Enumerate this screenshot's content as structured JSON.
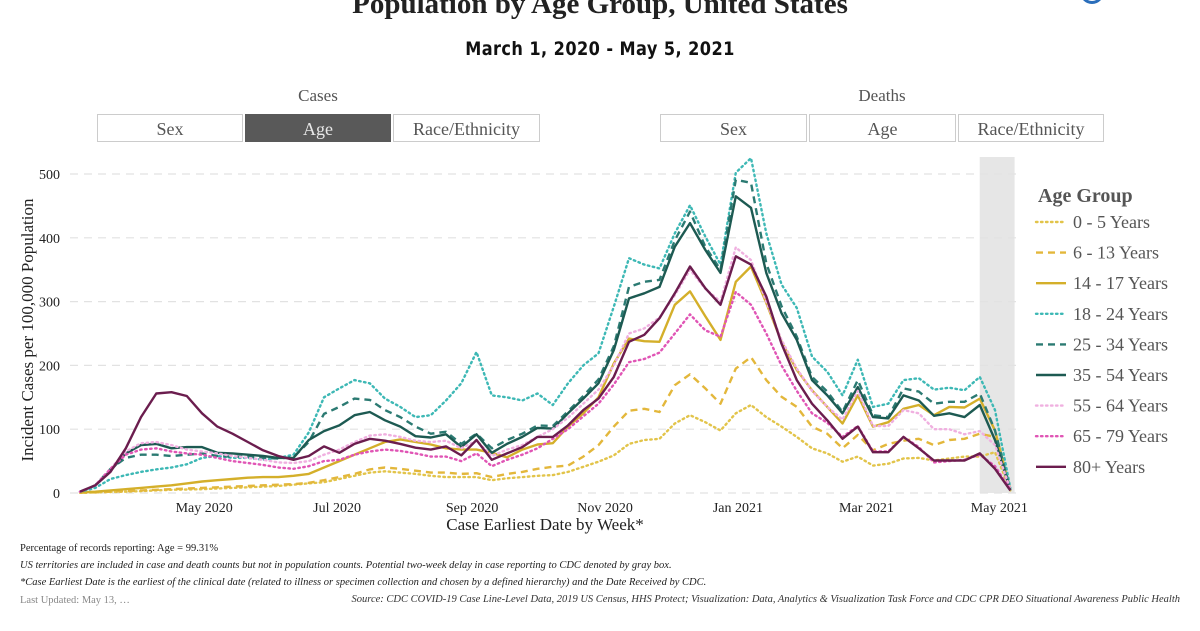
{
  "header": {
    "title": "Population by Age Group, United States",
    "subtitle": "March 1, 2020 - May 5, 2021"
  },
  "toggles": {
    "cases": {
      "label": "Cases",
      "buttons": [
        "Sex",
        "Age",
        "Race/Ethnicity"
      ],
      "active": "Age"
    },
    "deaths": {
      "label": "Deaths",
      "buttons": [
        "Sex",
        "Age",
        "Race/Ethnicity"
      ]
    }
  },
  "footer": {
    "pct": "Percentage of records reporting: Age = 99.31%",
    "note1": "US territories are included in case and death counts but not in population counts. Potential two-week delay in case reporting to CDC denoted by gray box.",
    "note2": "*Case Earliest Date is the earliest of the clinical date (related to illness or specimen collection and chosen by a defined hierarchy) and the Date Received by CDC.",
    "updated": "Last Updated: May 13, …",
    "source": "Source: CDC COVID-19 Case Line-Level Data, 2019 US Census, HHS Protect; Visualization: Data, Analytics & Visualization Task Force and CDC CPR DEO Situational Awareness Public Health"
  },
  "chart_data": {
    "type": "line",
    "xlabel": "Case Earliest Date by Week*",
    "ylabel": "Incident Cases per 100,000 Population",
    "ylim": [
      0,
      500
    ],
    "yticks": [
      0,
      100,
      200,
      300,
      400,
      500
    ],
    "xticks": [
      {
        "date": "2020-05-01",
        "label": "May 2020"
      },
      {
        "date": "2020-07-01",
        "label": "Jul 2020"
      },
      {
        "date": "2020-09-01",
        "label": "Sep 2020"
      },
      {
        "date": "2020-11-01",
        "label": "Nov 2020"
      },
      {
        "date": "2021-01-01",
        "label": "Jan 2021"
      },
      {
        "date": "2021-03-01",
        "label": "Mar 2021"
      },
      {
        "date": "2021-05-01",
        "label": "May 2021"
      }
    ],
    "x_start": "2020-03-05",
    "x_interval_days": 7,
    "shaded_region": {
      "from": "2021-04-22",
      "to": "2021-05-08",
      "color": "#e6e6e6",
      "meaning": "Potential two-week reporting delay"
    },
    "grid": "horizontal dashed",
    "legend": {
      "title": "Age Group",
      "placement": "right"
    },
    "series": [
      {
        "name": "0 - 5 Years",
        "color": "#e2c44a",
        "dash": "dotted",
        "values": [
          0.3,
          1,
          1.5,
          2,
          3,
          4,
          5,
          5.5,
          6,
          7,
          8,
          9,
          10,
          11,
          13,
          15,
          17,
          22,
          27,
          32,
          34,
          32,
          30,
          27,
          25,
          25,
          25,
          20,
          23,
          25,
          27,
          28,
          33,
          41,
          49,
          59,
          77,
          83,
          85,
          109,
          122,
          111,
          98,
          125,
          138,
          119,
          104,
          88,
          70,
          62,
          49,
          57,
          43,
          46,
          54,
          55,
          51,
          54,
          57,
          57,
          64,
          4
        ]
      },
      {
        "name": "6 - 13 Years",
        "color": "#e3b73b",
        "dash": "dashed",
        "values": [
          0.5,
          1,
          2,
          3,
          4,
          5,
          6,
          7,
          8,
          9,
          10,
          11,
          12,
          13,
          14,
          16,
          20,
          25,
          30,
          37,
          40,
          38,
          35,
          32,
          32,
          30,
          31,
          25,
          30,
          33,
          38,
          41,
          43,
          57,
          75,
          104,
          129,
          132,
          127,
          169,
          186,
          164,
          140,
          195,
          213,
          177,
          151,
          135,
          104,
          93,
          70,
          91,
          67,
          77,
          82,
          85,
          75,
          83,
          85,
          93,
          88,
          6
        ]
      },
      {
        "name": "14 - 17 Years",
        "color": "#d4af2a",
        "dash": "solid",
        "values": [
          1,
          2,
          4,
          6,
          8,
          10,
          12,
          15,
          18,
          20,
          22,
          24,
          25,
          25,
          27,
          30,
          40,
          50,
          60,
          70,
          80,
          84,
          80,
          76,
          70,
          68,
          68,
          63,
          56,
          68,
          76,
          78,
          104,
          125,
          150,
          203,
          242,
          238,
          237,
          295,
          316,
          277,
          240,
          331,
          355,
          298,
          237,
          193,
          161,
          135,
          109,
          153,
          104,
          111,
          132,
          138,
          122,
          135,
          134,
          148,
          98,
          6
        ]
      },
      {
        "name": "18 - 24 Years",
        "color": "#3db8b5",
        "dash": "dotted",
        "values": [
          2,
          8,
          22,
          28,
          33,
          37,
          40,
          45,
          55,
          58,
          55,
          55,
          52,
          55,
          60,
          95,
          150,
          164,
          177,
          172,
          148,
          135,
          119,
          122,
          145,
          172,
          221,
          153,
          150,
          145,
          156,
          138,
          172,
          200,
          219,
          292,
          368,
          358,
          352,
          407,
          451,
          402,
          358,
          502,
          525,
          407,
          327,
          290,
          214,
          190,
          153,
          209,
          135,
          140,
          177,
          180,
          162,
          165,
          161,
          182,
          130,
          8
        ]
      },
      {
        "name": "25 - 34 Years",
        "color": "#2b7a72",
        "dash": "dashed",
        "values": [
          2,
          12,
          38,
          55,
          60,
          60,
          58,
          60,
          62,
          58,
          57,
          57,
          55,
          54,
          56,
          80,
          124,
          135,
          148,
          146,
          130,
          119,
          104,
          93,
          96,
          77,
          93,
          70,
          83,
          93,
          106,
          105,
          128,
          152,
          178,
          230,
          323,
          331,
          334,
          396,
          441,
          386,
          350,
          491,
          486,
          360,
          293,
          245,
          182,
          159,
          127,
          177,
          122,
          119,
          164,
          159,
          140,
          143,
          143,
          156,
          98,
          4
        ]
      },
      {
        "name": "35 - 54 Years",
        "color": "#1d5a52",
        "dash": "solid",
        "values": [
          2,
          12,
          35,
          62,
          75,
          77,
          70,
          72,
          72,
          63,
          62,
          60,
          58,
          55,
          55,
          83,
          97,
          106,
          122,
          127,
          114,
          104,
          89,
          87,
          92,
          72,
          92,
          63,
          77,
          88,
          102,
          101,
          125,
          148,
          172,
          224,
          305,
          313,
          323,
          386,
          423,
          381,
          345,
          465,
          447,
          345,
          282,
          240,
          177,
          153,
          125,
          166,
          119,
          117,
          153,
          145,
          121,
          125,
          119,
          138,
          83,
          4
        ]
      },
      {
        "name": "55 - 64 Years",
        "color": "#f0b0e0",
        "dash": "dotted",
        "values": [
          2,
          12,
          38,
          65,
          78,
          80,
          75,
          68,
          65,
          62,
          58,
          55,
          52,
          48,
          47,
          50,
          60,
          68,
          80,
          90,
          92,
          88,
          82,
          80,
          82,
          70,
          82,
          58,
          68,
          75,
          88,
          100,
          118,
          140,
          162,
          200,
          250,
          258,
          275,
          310,
          350,
          320,
          300,
          385,
          365,
          300,
          240,
          195,
          160,
          135,
          115,
          160,
          105,
          105,
          130,
          125,
          100,
          100,
          92,
          97,
          75,
          6
        ]
      },
      {
        "name": "65 - 79 Years",
        "color": "#e055b5",
        "dash": "dotted",
        "values": [
          2,
          12,
          38,
          60,
          68,
          70,
          65,
          62,
          60,
          55,
          50,
          47,
          44,
          40,
          38,
          42,
          50,
          52,
          60,
          65,
          68,
          66,
          62,
          57,
          57,
          50,
          62,
          42,
          52,
          60,
          70,
          85,
          100,
          120,
          140,
          170,
          205,
          210,
          220,
          250,
          280,
          255,
          245,
          315,
          295,
          250,
          200,
          160,
          125,
          110,
          88,
          105,
          65,
          65,
          88,
          72,
          48,
          50,
          52,
          60,
          42,
          5
        ]
      },
      {
        "name": "80+ Years",
        "color": "#6b1d4e",
        "dash": "solid",
        "values": [
          2,
          12,
          33,
          70,
          119,
          156,
          158,
          152,
          125,
          104,
          93,
          80,
          67,
          58,
          52,
          58,
          73,
          63,
          77,
          85,
          82,
          77,
          71,
          68,
          73,
          59,
          83,
          52,
          62,
          72,
          88,
          88,
          106,
          130,
          148,
          182,
          237,
          248,
          274,
          313,
          355,
          321,
          295,
          371,
          358,
          308,
          234,
          177,
          140,
          114,
          85,
          104,
          64,
          64,
          88,
          70,
          51,
          51,
          51,
          62,
          38,
          4
        ]
      }
    ]
  }
}
